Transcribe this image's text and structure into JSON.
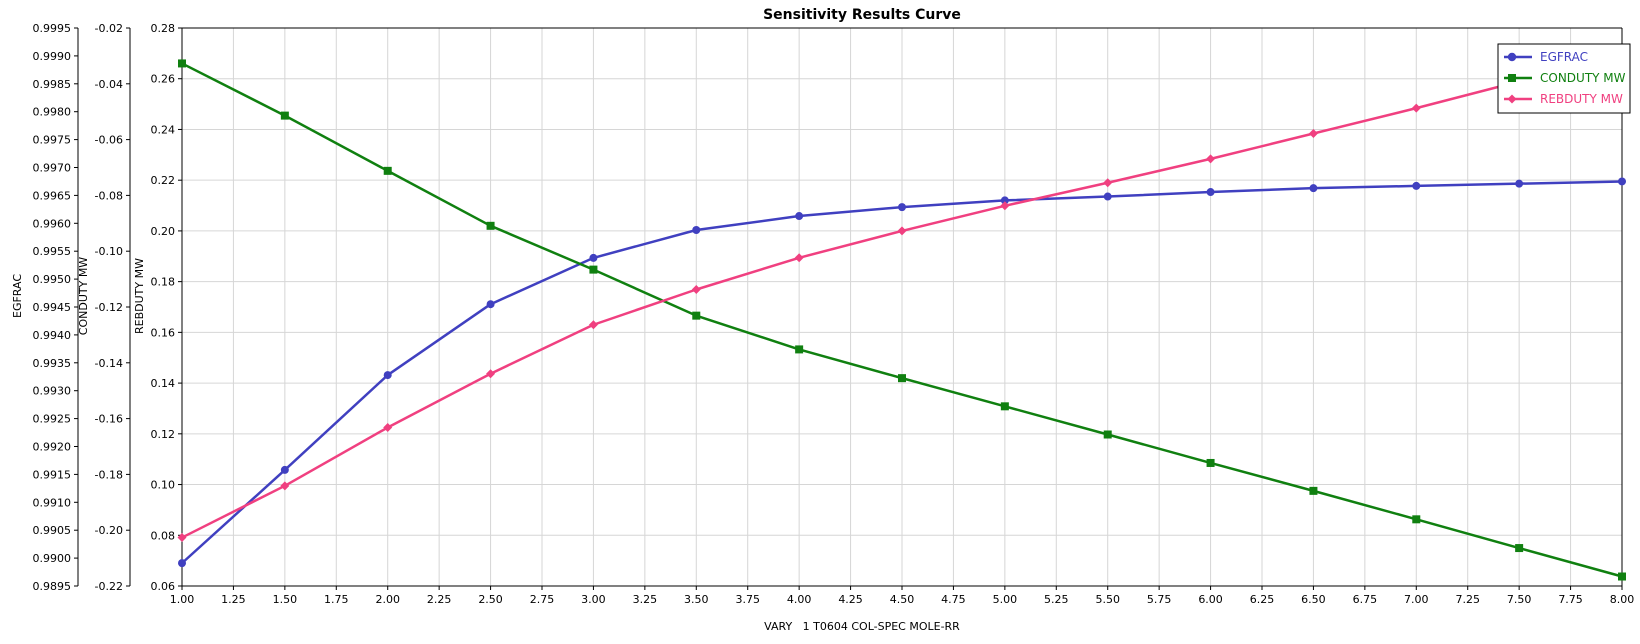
{
  "chart_data": {
    "type": "line",
    "title": "Sensitivity Results Curve",
    "xlabel": "VARY   1 T0604 COL-SPEC MOLE-RR",
    "xlim": [
      1.0,
      8.0
    ],
    "xticks": [
      "1.00",
      "1.25",
      "1.50",
      "1.75",
      "2.00",
      "2.25",
      "2.50",
      "2.75",
      "3.00",
      "3.25",
      "3.50",
      "3.75",
      "4.00",
      "4.25",
      "4.50",
      "4.75",
      "5.00",
      "5.25",
      "5.50",
      "5.75",
      "6.00",
      "6.25",
      "6.50",
      "6.75",
      "7.00",
      "7.25",
      "7.50",
      "7.75",
      "8.00"
    ],
    "grid": true,
    "legend_position": "top-right",
    "x": [
      1.0,
      1.5,
      2.0,
      2.5,
      3.0,
      3.5,
      4.0,
      4.5,
      5.0,
      5.5,
      6.0,
      6.5,
      7.0,
      7.5,
      8.0
    ],
    "y_axes": [
      {
        "label": "EGFRAC",
        "lim": [
          0.9895,
          0.9995
        ],
        "ticks": [
          "0.9995",
          "0.9990",
          "0.9985",
          "0.9980",
          "0.9975",
          "0.9970",
          "0.9965",
          "0.9960",
          "0.9955",
          "0.9950",
          "0.9945",
          "0.9940",
          "0.9935",
          "0.9930",
          "0.9925",
          "0.9920",
          "0.9915",
          "0.9910",
          "0.9905",
          "0.9900",
          "0.9895"
        ]
      },
      {
        "label": "CONDUTY MW",
        "lim": [
          -0.22,
          -0.02
        ],
        "ticks": [
          "-0.02",
          "-0.04",
          "-0.06",
          "-0.08",
          "-0.10",
          "-0.12",
          "-0.14",
          "-0.16",
          "-0.18",
          "-0.20",
          "-0.22"
        ]
      },
      {
        "label": "REBDUTY MW",
        "lim": [
          0.06,
          0.28
        ],
        "ticks": [
          "0.28",
          "0.26",
          "0.24",
          "0.22",
          "0.20",
          "0.18",
          "0.16",
          "0.14",
          "0.12",
          "0.10",
          "0.08",
          "0.06"
        ]
      }
    ],
    "series": [
      {
        "name": "EGFRAC",
        "axis": 0,
        "color": "#4040c0",
        "marker": "circle",
        "values": [
          0.98991,
          0.99158,
          0.99328,
          0.99455,
          0.99538,
          0.99588,
          0.99613,
          0.99629,
          0.99641,
          0.99648,
          0.99656,
          0.99663,
          0.99667,
          0.99671,
          0.99675
        ]
      },
      {
        "name": "CONDUTY MW",
        "axis": 1,
        "color": "#108010",
        "marker": "square",
        "values": [
          -0.0327,
          -0.0514,
          -0.0712,
          -0.0909,
          -0.1066,
          -0.1231,
          -0.1352,
          -0.1455,
          -0.1556,
          -0.1657,
          -0.1759,
          -0.1859,
          -0.1961,
          -0.2064,
          -0.2166
        ]
      },
      {
        "name": "REBDUTY MW",
        "axis": 2,
        "color": "#f04080",
        "marker": "diamond",
        "values": [
          0.0791,
          0.0995,
          0.1225,
          0.1437,
          0.163,
          0.1769,
          0.1894,
          0.2,
          0.2099,
          0.219,
          0.2284,
          0.2384,
          0.2484,
          0.2589,
          0.269
        ]
      }
    ]
  }
}
